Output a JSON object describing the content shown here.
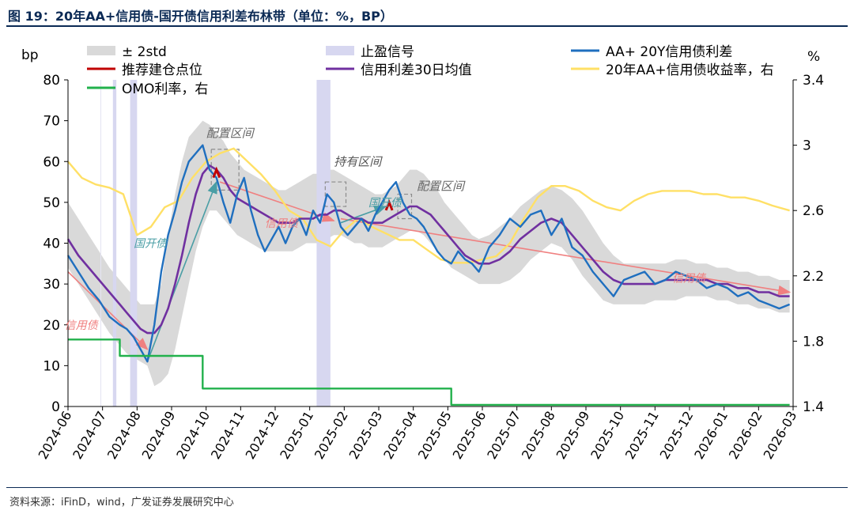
{
  "title": "图 19：20年AA+信用债-国开债信用利差布林带（单位：%，BP）",
  "source": "资料来源：iFinD，wind，广发证券发展研究中心",
  "chart_data": {
    "type": "line",
    "x_ticks": [
      "2024-06",
      "2024-07",
      "2024-08",
      "2024-09",
      "2024-10",
      "2024-11",
      "2024-12",
      "2025-01",
      "2025-02",
      "2025-03",
      "2025-04",
      "2025-05",
      "2025-06",
      "2025-07",
      "2025-08",
      "2025-09",
      "2025-10",
      "2025-11",
      "2025-12",
      "2026-01",
      "2026-02",
      "2026-03"
    ],
    "y_left": {
      "label": "bp",
      "min": 0,
      "max": 80,
      "ticks": [
        0,
        10,
        20,
        30,
        40,
        50,
        60,
        70,
        80
      ]
    },
    "y_right": {
      "label": "%",
      "min": 1.4,
      "max": 3.4,
      "ticks": [
        "1.4",
        "1.8",
        "2.2",
        "2.6",
        "3",
        "3.4"
      ]
    },
    "legend": [
      {
        "key": "band",
        "label": "± 2std",
        "color": "#d9d9d9"
      },
      {
        "key": "stop",
        "label": "止盈信号",
        "color": "#d7d7f0"
      },
      {
        "key": "spread",
        "label": "AA+ 20Y信用债利差",
        "color": "#1f6fbf"
      },
      {
        "key": "build",
        "label": "推荐建仓点位",
        "color": "#c00000"
      },
      {
        "key": "ma30",
        "label": "信用利差30日均值",
        "color": "#7030a0"
      },
      {
        "key": "yield",
        "label": "20年AA+信用债收益率，右",
        "color": "#ffe066"
      },
      {
        "key": "omo",
        "label": "OMO利率，右",
        "color": "#22b14c"
      }
    ],
    "spread_x": [
      0,
      0.3,
      0.6,
      0.9,
      1.2,
      1.5,
      1.7,
      1.9,
      2.1,
      2.3,
      2.5,
      2.7,
      2.9,
      3.1,
      3.3,
      3.5,
      3.7,
      3.9,
      4.1,
      4.3,
      4.5,
      4.7,
      4.9,
      5.1,
      5.3,
      5.5,
      5.7,
      5.9,
      6.1,
      6.3,
      6.5,
      6.7,
      6.9,
      7.1,
      7.3,
      7.5,
      7.7,
      7.9,
      8.1,
      8.3,
      8.5,
      8.7,
      8.9,
      9.1,
      9.3,
      9.5,
      9.7,
      9.9,
      10.1,
      10.3,
      10.5,
      10.7,
      10.9,
      11.1,
      11.3,
      11.5,
      11.7,
      11.9,
      12.2,
      12.5,
      12.8,
      13.1,
      13.4,
      13.7,
      14,
      14.3,
      14.6,
      14.9,
      15.2,
      15.5,
      15.8,
      16.1,
      16.4,
      16.7,
      17,
      17.3,
      17.6,
      17.9,
      18.2,
      18.5,
      18.8,
      19.1,
      19.4,
      19.7,
      20,
      20.3,
      20.6,
      20.9
    ],
    "spread_y": [
      37,
      33,
      29,
      26,
      22,
      20,
      19,
      17,
      14,
      11,
      20,
      33,
      42,
      48,
      55,
      60,
      62,
      64,
      58,
      56,
      50,
      45,
      52,
      56,
      48,
      42,
      38,
      41,
      44,
      40,
      44,
      46,
      42,
      48,
      45,
      52,
      50,
      44,
      42,
      44,
      46,
      43,
      47,
      50,
      53,
      55,
      50,
      47,
      46,
      44,
      41,
      38,
      36,
      35,
      38,
      36,
      35,
      33,
      39,
      42,
      46,
      44,
      47,
      48,
      42,
      46,
      39,
      37,
      33,
      30,
      27,
      31,
      32,
      33,
      30,
      31,
      33,
      32,
      31,
      29,
      30,
      29,
      27,
      28,
      26,
      25,
      24,
      25
    ],
    "ma30_y": [
      41,
      37,
      34,
      31,
      28,
      25,
      23,
      21,
      19,
      18,
      18,
      20,
      24,
      30,
      37,
      45,
      52,
      57,
      59,
      58,
      56,
      53,
      51,
      50,
      49,
      48,
      47,
      46,
      45,
      45,
      45,
      46,
      46,
      46,
      47,
      47,
      48,
      48,
      47,
      46,
      46,
      45,
      45,
      45,
      46,
      47,
      48,
      49,
      49,
      48,
      47,
      45,
      43,
      41,
      39,
      37,
      36,
      35,
      35,
      36,
      38,
      41,
      43,
      45,
      46,
      45,
      42,
      39,
      36,
      33,
      31,
      30,
      30,
      30,
      30,
      31,
      31,
      31,
      31,
      31,
      30,
      30,
      29,
      29,
      28,
      28,
      27,
      27
    ],
    "upper_y": [
      50,
      46,
      42,
      38,
      34,
      31,
      29,
      27,
      25,
      25,
      25,
      30,
      42,
      52,
      60,
      66,
      68,
      70,
      69,
      67,
      65,
      62,
      60,
      58,
      57,
      56,
      55,
      54,
      53,
      53,
      54,
      55,
      56,
      57,
      57,
      58,
      58,
      57,
      56,
      55,
      54,
      53,
      52,
      52,
      53,
      54,
      56,
      58,
      58,
      57,
      55,
      53,
      50,
      48,
      46,
      44,
      42,
      41,
      42,
      44,
      46,
      49,
      51,
      53,
      54,
      53,
      51,
      48,
      44,
      40,
      37,
      35,
      35,
      35,
      35,
      35,
      36,
      36,
      35,
      35,
      34,
      34,
      33,
      33,
      32,
      32,
      31,
      31
    ],
    "lower_y": [
      34,
      30,
      26,
      22,
      18,
      15,
      13,
      12,
      11,
      10,
      5,
      6,
      8,
      14,
      22,
      30,
      38,
      44,
      48,
      48,
      46,
      44,
      42,
      41,
      40,
      39,
      38,
      38,
      38,
      38,
      38,
      39,
      40,
      40,
      40,
      41,
      42,
      42,
      41,
      40,
      40,
      39,
      39,
      39,
      40,
      41,
      42,
      43,
      43,
      42,
      40,
      38,
      36,
      34,
      33,
      32,
      31,
      30,
      30,
      30,
      31,
      33,
      36,
      38,
      40,
      39,
      36,
      32,
      29,
      26,
      25,
      25,
      25,
      25,
      26,
      26,
      26,
      27,
      27,
      27,
      26,
      26,
      25,
      25,
      24,
      24,
      23,
      23
    ],
    "yield_x": [
      0,
      0.4,
      0.8,
      1.2,
      1.6,
      2,
      2.4,
      2.8,
      3.2,
      3.6,
      4,
      4.4,
      4.8,
      5.2,
      5.6,
      6,
      6.4,
      6.8,
      7.2,
      7.6,
      8,
      8.4,
      8.8,
      9.2,
      9.6,
      10,
      10.4,
      10.8,
      11.2,
      11.6,
      12,
      12.4,
      12.8,
      13.2,
      13.6,
      14,
      14.4,
      14.8,
      15.2,
      15.6,
      16,
      16.4,
      16.8,
      17.2,
      17.6,
      18,
      18.4,
      18.8,
      19.2,
      19.6,
      20,
      20.4,
      20.9
    ],
    "yield_y": [
      2.9,
      2.8,
      2.76,
      2.74,
      2.7,
      2.45,
      2.5,
      2.62,
      2.66,
      2.8,
      2.9,
      2.95,
      2.98,
      2.9,
      2.82,
      2.72,
      2.6,
      2.55,
      2.42,
      2.38,
      2.48,
      2.55,
      2.5,
      2.46,
      2.42,
      2.42,
      2.36,
      2.3,
      2.28,
      2.28,
      2.3,
      2.32,
      2.4,
      2.55,
      2.68,
      2.75,
      2.75,
      2.72,
      2.66,
      2.62,
      2.6,
      2.66,
      2.7,
      2.72,
      2.72,
      2.72,
      2.7,
      2.7,
      2.68,
      2.68,
      2.66,
      2.63,
      2.6
    ],
    "omo_x": [
      0,
      1.5,
      1.5,
      3.9,
      3.9,
      11.1,
      11.1,
      20.9
    ],
    "omo_y": [
      1.81,
      1.81,
      1.71,
      1.71,
      1.51,
      1.51,
      1.41,
      1.41
    ],
    "build_points": [
      {
        "x": 4.3,
        "y": 58
      },
      {
        "x": 9.3,
        "y": 50
      }
    ],
    "stop_bands": [
      [
        1.3,
        1.4
      ],
      [
        1.8,
        2.0
      ],
      [
        7.2,
        7.6
      ]
    ],
    "thin_markers": [
      0.95
    ],
    "annotations": [
      {
        "text": "配置区间",
        "x": 4.0,
        "y": 66,
        "color": "#666666",
        "italic": true,
        "size": 15
      },
      {
        "text": "持有区间",
        "x": 7.7,
        "y": 59,
        "color": "#555555",
        "italic": true,
        "size": 15
      },
      {
        "text": "配置区间",
        "x": 10.1,
        "y": 53,
        "color": "#666666",
        "italic": true,
        "size": 15
      },
      {
        "text": "国开债",
        "x": 8.7,
        "y": 49,
        "color": "#4a9ea5",
        "italic": true,
        "size": 14
      },
      {
        "text": "国开债",
        "x": 1.9,
        "y": 39,
        "color": "#4a9ea5",
        "italic": true,
        "size": 14
      },
      {
        "text": "信用债",
        "x": 5.7,
        "y": 44,
        "color": "#f08080",
        "italic": true,
        "size": 14
      },
      {
        "text": "信用债",
        "x": -0.1,
        "y": 19,
        "color": "#f08080",
        "italic": true,
        "size": 14
      },
      {
        "text": "信用债",
        "x": 17.5,
        "y": 30.5,
        "color": "#f08080",
        "italic": true,
        "size": 14
      }
    ]
  }
}
